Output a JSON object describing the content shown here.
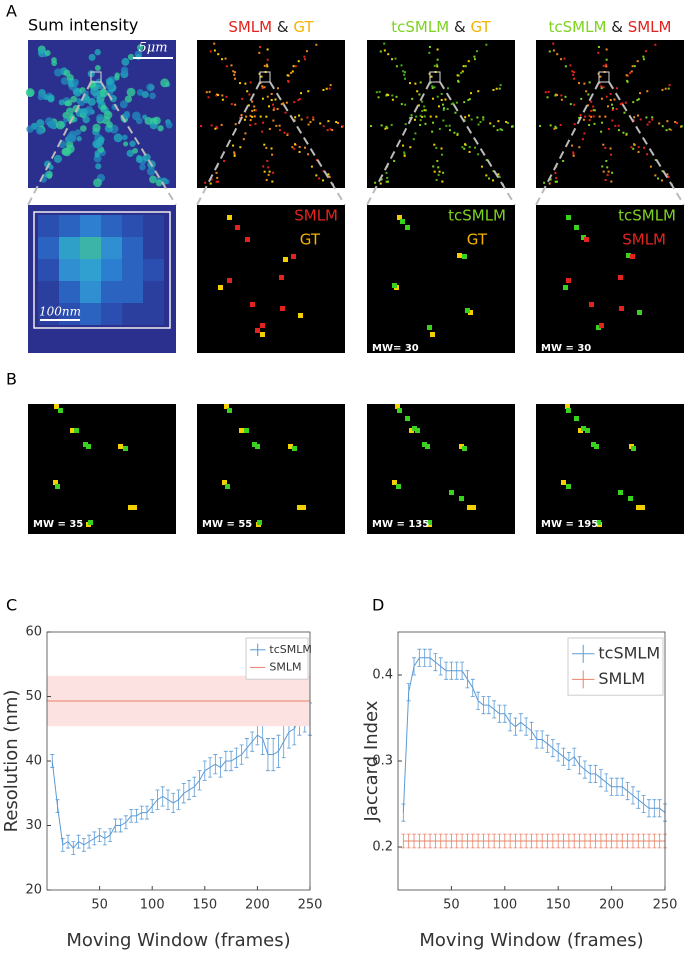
{
  "panel_a": {
    "label": "A",
    "titles": [
      [
        "Sum intensity"
      ],
      [
        "SMLM",
        "&",
        "GT"
      ],
      [
        "tcSMLM",
        "&",
        "GT"
      ],
      [
        "tcSMLM",
        "&",
        "SMLM"
      ]
    ],
    "scale_bar_top": "5μm",
    "scale_bar_zoom": "100nm",
    "zoom_legends": [
      [
        "SMLM",
        "GT"
      ],
      [
        "tcSMLM",
        "GT"
      ],
      [
        "tcSMLM",
        "SMLM"
      ]
    ],
    "zoom_mw": [
      "MW= 30",
      "MW = 30"
    ]
  },
  "panel_b": {
    "label": "B",
    "mw": [
      "MW = 35",
      "MW = 55",
      "MW = 135",
      "MW = 195"
    ]
  },
  "chart_data": [
    {
      "type": "line",
      "panel_label": "C",
      "ylabel": "Resolution (nm)",
      "xlabel": "Moving Window (frames)",
      "xlim": [
        0,
        250
      ],
      "ylim": [
        20,
        60
      ],
      "xticks": [
        50,
        100,
        150,
        200,
        250
      ],
      "yticks": [
        20,
        30,
        40,
        50,
        60
      ],
      "legend_loc": "upper right",
      "series": [
        {
          "name": "tcSMLM",
          "color": "#5b9bd5",
          "x": [
            5,
            10,
            15,
            20,
            25,
            30,
            35,
            40,
            45,
            50,
            55,
            60,
            65,
            70,
            75,
            80,
            85,
            90,
            95,
            100,
            105,
            110,
            115,
            120,
            125,
            130,
            135,
            140,
            145,
            150,
            155,
            160,
            165,
            170,
            175,
            180,
            185,
            190,
            195,
            200,
            205,
            210,
            215,
            220,
            225,
            230,
            235,
            240,
            245,
            250
          ],
          "values": [
            40,
            33,
            27,
            27.5,
            26.5,
            27.5,
            27,
            27.5,
            28,
            28.5,
            28,
            28.5,
            30,
            30,
            30.5,
            31.5,
            31.5,
            32,
            32,
            33,
            34,
            34.5,
            34,
            33.5,
            34,
            35,
            35.5,
            36,
            37,
            38.5,
            39,
            39.5,
            39,
            40,
            40,
            40.5,
            41,
            42,
            43,
            44,
            43.5,
            41,
            41,
            41.5,
            43,
            44.5,
            45,
            46.5,
            47,
            46.5
          ],
          "errors": [
            1,
            1,
            1,
            1,
            1,
            1,
            1,
            1,
            1,
            1,
            1,
            1,
            1,
            1,
            1,
            1,
            1,
            1,
            1,
            1,
            1.5,
            1.5,
            1.5,
            1.5,
            1.5,
            1.5,
            1.5,
            1.5,
            1.5,
            1.5,
            1.5,
            1.5,
            1.5,
            1.5,
            1.5,
            1.5,
            1.5,
            1.5,
            1.5,
            1.5,
            2.5,
            2.5,
            2.5,
            2.5,
            2.5,
            2.5,
            2.5,
            2.5,
            2.5,
            2.5
          ]
        },
        {
          "name": "SMLM",
          "color": "#e8836b",
          "band": true,
          "x": [
            0,
            250
          ],
          "values": [
            49.3,
            49.3
          ],
          "errors": [
            3.9,
            3.9
          ]
        }
      ]
    },
    {
      "type": "line",
      "panel_label": "D",
      "ylabel": "Jaccard Index",
      "xlabel": "Moving Window (frames)",
      "xlim": [
        0,
        250
      ],
      "ylim": [
        0.15,
        0.45
      ],
      "xticks": [
        50,
        100,
        150,
        200,
        250
      ],
      "yticks": [
        0.2,
        0.3,
        0.4
      ],
      "legend_loc": "upper right",
      "series": [
        {
          "name": "tcSMLM",
          "color": "#5b9bd5",
          "x": [
            5,
            10,
            15,
            20,
            25,
            30,
            35,
            40,
            45,
            50,
            55,
            60,
            65,
            70,
            75,
            80,
            85,
            90,
            95,
            100,
            105,
            110,
            115,
            120,
            125,
            130,
            135,
            140,
            145,
            150,
            155,
            160,
            165,
            170,
            175,
            180,
            185,
            190,
            195,
            200,
            205,
            210,
            215,
            220,
            225,
            230,
            235,
            240,
            245,
            250
          ],
          "values": [
            0.24,
            0.38,
            0.41,
            0.42,
            0.42,
            0.42,
            0.415,
            0.41,
            0.405,
            0.405,
            0.405,
            0.405,
            0.395,
            0.385,
            0.37,
            0.365,
            0.365,
            0.36,
            0.355,
            0.355,
            0.345,
            0.34,
            0.345,
            0.34,
            0.335,
            0.325,
            0.325,
            0.32,
            0.315,
            0.31,
            0.305,
            0.3,
            0.305,
            0.295,
            0.29,
            0.285,
            0.285,
            0.28,
            0.275,
            0.27,
            0.27,
            0.27,
            0.265,
            0.26,
            0.255,
            0.25,
            0.245,
            0.245,
            0.245,
            0.24
          ],
          "errors": [
            0.01,
            0.01,
            0.01,
            0.01,
            0.01,
            0.01,
            0.01,
            0.01,
            0.01,
            0.01,
            0.01,
            0.01,
            0.01,
            0.01,
            0.01,
            0.01,
            0.01,
            0.01,
            0.01,
            0.01,
            0.01,
            0.01,
            0.01,
            0.01,
            0.01,
            0.01,
            0.01,
            0.01,
            0.01,
            0.01,
            0.01,
            0.01,
            0.01,
            0.01,
            0.01,
            0.01,
            0.01,
            0.01,
            0.01,
            0.01,
            0.01,
            0.01,
            0.01,
            0.01,
            0.01,
            0.01,
            0.01,
            0.01,
            0.01,
            0.01
          ]
        },
        {
          "name": "SMLM",
          "color": "#e8836b",
          "x": [
            5,
            10,
            15,
            20,
            25,
            30,
            35,
            40,
            45,
            50,
            55,
            60,
            65,
            70,
            75,
            80,
            85,
            90,
            95,
            100,
            105,
            110,
            115,
            120,
            125,
            130,
            135,
            140,
            145,
            150,
            155,
            160,
            165,
            170,
            175,
            180,
            185,
            190,
            195,
            200,
            205,
            210,
            215,
            220,
            225,
            230,
            235,
            240,
            245,
            250
          ],
          "values": [
            0.207,
            0.207,
            0.207,
            0.207,
            0.207,
            0.207,
            0.207,
            0.207,
            0.207,
            0.207,
            0.207,
            0.207,
            0.207,
            0.207,
            0.207,
            0.207,
            0.207,
            0.207,
            0.207,
            0.207,
            0.207,
            0.207,
            0.207,
            0.207,
            0.207,
            0.207,
            0.207,
            0.207,
            0.207,
            0.207,
            0.207,
            0.207,
            0.207,
            0.207,
            0.207,
            0.207,
            0.207,
            0.207,
            0.207,
            0.207,
            0.207,
            0.207,
            0.207,
            0.207,
            0.207,
            0.207,
            0.207,
            0.207,
            0.207,
            0.207
          ],
          "errors": [
            0.008,
            0.008,
            0.008,
            0.008,
            0.008,
            0.008,
            0.008,
            0.008,
            0.008,
            0.008,
            0.008,
            0.008,
            0.008,
            0.008,
            0.008,
            0.008,
            0.008,
            0.008,
            0.008,
            0.008,
            0.008,
            0.008,
            0.008,
            0.008,
            0.008,
            0.008,
            0.008,
            0.008,
            0.008,
            0.008,
            0.008,
            0.008,
            0.008,
            0.008,
            0.008,
            0.008,
            0.008,
            0.008,
            0.008,
            0.008,
            0.008,
            0.008,
            0.008,
            0.008,
            0.008,
            0.008,
            0.008,
            0.008,
            0.008,
            0.008
          ]
        }
      ]
    }
  ]
}
